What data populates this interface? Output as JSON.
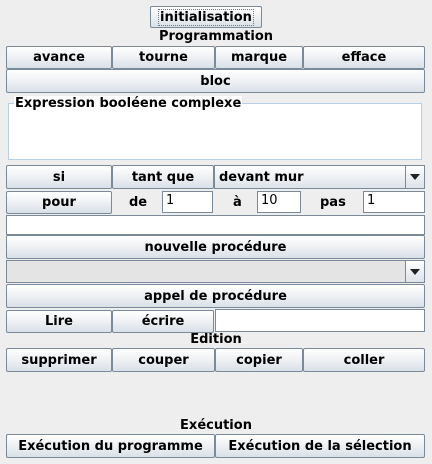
{
  "top": {
    "init_label": "initialisation"
  },
  "programmation": {
    "section_label": "Programmation",
    "row1": [
      "avance",
      "tourne",
      "marque",
      "efface"
    ],
    "bloc_label": "bloc",
    "expression_legend": "Expression booléene complexe",
    "expression_value": ""
  },
  "conditions": {
    "si_label": "si",
    "tant_que_label": "tant que",
    "condition_selected": "devant mur"
  },
  "loop": {
    "pour_label": "pour",
    "de_label": "de",
    "de_value": "1",
    "a_label": "à",
    "a_value": "10",
    "pas_label": "pas",
    "pas_value": "1",
    "variable_value": ""
  },
  "procedures": {
    "new_label": "nouvelle procédure",
    "selected": "",
    "call_label": "appel de procédure"
  },
  "io": {
    "lire_label": "Lire",
    "ecrire_label": "écrire",
    "value": ""
  },
  "edition": {
    "section_label": "Edition",
    "buttons": [
      "supprimer",
      "couper",
      "copier",
      "coller"
    ]
  },
  "execution": {
    "section_label": "Exécution",
    "run_program_label": "Exécution du programme",
    "run_selection_label": "Exécution de la sélection"
  }
}
